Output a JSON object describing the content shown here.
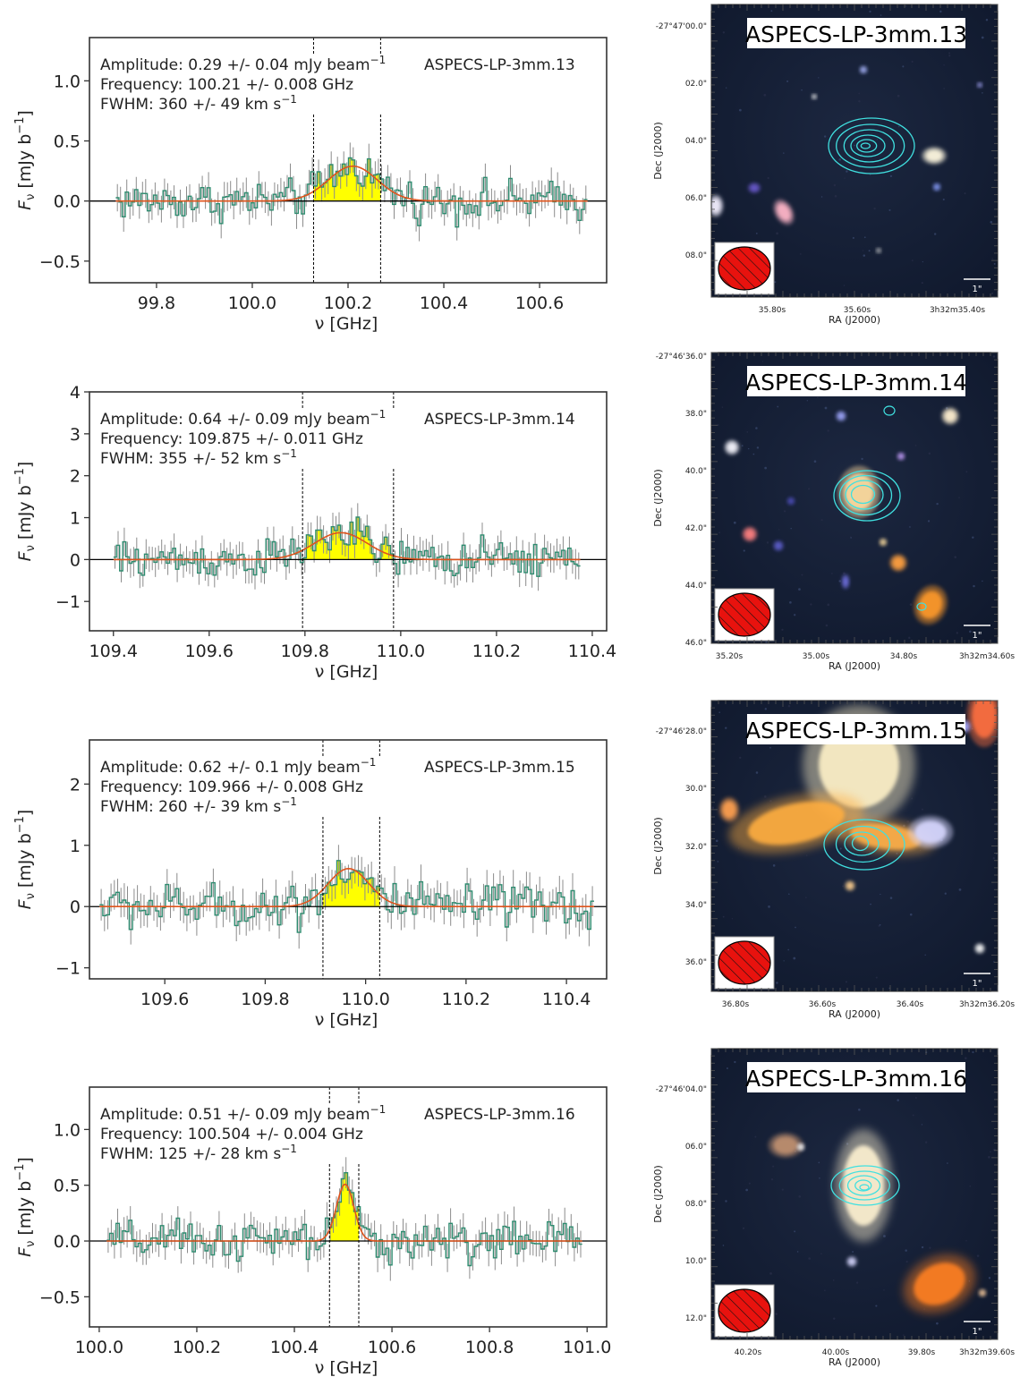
{
  "chart_data": [
    {
      "type": "line",
      "source": "ASPECS-LP-3mm.13",
      "ylabel_main": "F",
      "ylabel_sub": "ν",
      "ylabel_rest": " [mJy b",
      "ylabel_sup": "−1",
      "ylabel_end": "]",
      "xlabel": "ν [GHz]",
      "xlim": [
        99.66,
        100.74
      ],
      "ylim": [
        -0.68,
        1.36
      ],
      "xticks": [
        99.8,
        100.0,
        100.2,
        100.4,
        100.6
      ],
      "xtick_labels": [
        "99.8",
        "100.0",
        "100.2",
        "100.4",
        "100.6"
      ],
      "yticks": [
        -0.5,
        0.0,
        0.5,
        1.0
      ],
      "ytick_labels": [
        "−0.5",
        "0.0",
        "0.5",
        "1.0"
      ],
      "spectrum_x_range": [
        99.715,
        100.7
      ],
      "spectrum_noise": 0.1,
      "line_window": [
        100.128,
        100.268
      ],
      "gauss": {
        "amplitude": 0.29,
        "center": 100.21,
        "sigma_ghz": 0.0511
      },
      "annotation": {
        "amp_prefix": "Amplitude: 0.29 +/- 0.04 mJy beam",
        "amp_sup": "−1",
        "freq": "Frequency: 100.21 +/- 0.008 GHz",
        "fwhm_prefix": "FWHM: 360 +/- 49 km s",
        "fwhm_sup": "−1"
      },
      "name_label": "ASPECS-LP-3mm.13"
    },
    {
      "type": "line",
      "source": "ASPECS-LP-3mm.14",
      "ylabel_main": "F",
      "ylabel_sub": "ν",
      "ylabel_rest": " [mJy b",
      "ylabel_sup": "−1",
      "ylabel_end": "]",
      "xlabel": "ν [GHz]",
      "xlim": [
        109.35,
        110.43
      ],
      "ylim": [
        -1.7,
        4.0
      ],
      "xticks": [
        109.4,
        109.6,
        109.8,
        110.0,
        110.2,
        110.4
      ],
      "xtick_labels": [
        "109.4",
        "109.6",
        "109.8",
        "110.0",
        "110.2",
        "110.4"
      ],
      "yticks": [
        -1,
        0,
        1,
        2,
        3,
        4
      ],
      "ytick_labels": [
        "−1",
        "0",
        "1",
        "2",
        "3",
        "4"
      ],
      "spectrum_x_range": [
        109.4,
        110.375
      ],
      "spectrum_noise": 0.28,
      "line_window": [
        109.795,
        109.985
      ],
      "gauss": {
        "amplitude": 0.64,
        "center": 109.875,
        "sigma_ghz": 0.0551
      },
      "annotation": {
        "amp_prefix": "Amplitude: 0.64 +/- 0.09 mJy beam",
        "amp_sup": "−1",
        "freq": "Frequency: 109.875 +/- 0.011 GHz",
        "fwhm_prefix": "FWHM: 355 +/- 52 km s",
        "fwhm_sup": "−1"
      },
      "name_label": "ASPECS-LP-3mm.14"
    },
    {
      "type": "line",
      "source": "ASPECS-LP-3mm.15",
      "ylabel_main": "F",
      "ylabel_sub": "ν",
      "ylabel_rest": " [mJy b",
      "ylabel_sup": "−1",
      "ylabel_end": "]",
      "xlabel": "ν [GHz]",
      "xlim": [
        109.45,
        110.48
      ],
      "ylim": [
        -1.18,
        2.72
      ],
      "xticks": [
        109.6,
        109.8,
        110.0,
        110.2,
        110.4
      ],
      "xtick_labels": [
        "109.6",
        "109.8",
        "110.0",
        "110.2",
        "110.4"
      ],
      "yticks": [
        -1,
        0,
        1,
        2
      ],
      "ytick_labels": [
        "−1",
        "0",
        "1",
        "2"
      ],
      "spectrum_x_range": [
        109.47,
        110.455
      ],
      "spectrum_noise": 0.22,
      "line_window": [
        109.915,
        110.028
      ],
      "gauss": {
        "amplitude": 0.62,
        "center": 109.966,
        "sigma_ghz": 0.0405
      },
      "annotation": {
        "amp_prefix": "Amplitude: 0.62 +/- 0.1 mJy beam",
        "amp_sup": "−1",
        "freq": "Frequency: 109.966 +/- 0.008 GHz",
        "fwhm_prefix": "FWHM: 260 +/- 39 km s",
        "fwhm_sup": "−1"
      },
      "name_label": "ASPECS-LP-3mm.15"
    },
    {
      "type": "line",
      "source": "ASPECS-LP-3mm.16",
      "ylabel_main": "F",
      "ylabel_sub": "ν",
      "ylabel_rest": " [mJy b",
      "ylabel_sup": "−1",
      "ylabel_end": "]",
      "xlabel": "ν [GHz]",
      "xlim": [
        99.98,
        101.04
      ],
      "ylim": [
        -0.77,
        1.38
      ],
      "xticks": [
        100.0,
        100.2,
        100.4,
        100.6,
        100.8,
        101.0
      ],
      "xtick_labels": [
        "100.0",
        "100.2",
        "100.4",
        "100.6",
        "100.8",
        "101.0"
      ],
      "yticks": [
        -0.5,
        0.0,
        0.5,
        1.0
      ],
      "ytick_labels": [
        "−0.5",
        "0.0",
        "0.5",
        "1.0"
      ],
      "spectrum_x_range": [
        100.015,
        100.99
      ],
      "spectrum_noise": 0.11,
      "line_window": [
        100.472,
        100.532
      ],
      "gauss": {
        "amplitude": 0.51,
        "center": 100.504,
        "sigma_ghz": 0.0178
      },
      "annotation": {
        "amp_prefix": "Amplitude: 0.51 +/- 0.09 mJy beam",
        "amp_sup": "−1",
        "freq": "Frequency: 100.504 +/- 0.004 GHz",
        "fwhm_prefix": "FWHM: 125 +/- 28 km s",
        "fwhm_sup": "−1"
      },
      "name_label": "ASPECS-LP-3mm.16"
    }
  ],
  "stamps": [
    {
      "title": "ASPECS-LP-3mm.13",
      "dec_ticks": [
        "-27°47'00.0\"",
        "02.0\"",
        "04.0\"",
        "06.0\"",
        "08.0\""
      ],
      "ra_ticks": [
        "35.80s",
        "35.60s",
        "3h32m35.40s"
      ],
      "dec_label": "Dec (J2000)",
      "ra_label": "RA (J2000)",
      "scale_label": "1\"",
      "contour_color": "#40e0e0",
      "beam_color": "#e8120e"
    },
    {
      "title": "ASPECS-LP-3mm.14",
      "dec_ticks": [
        "-27°46'36.0\"",
        "38.0\"",
        "40.0\"",
        "42.0\"",
        "44.0\"",
        "46.0\""
      ],
      "ra_ticks": [
        "35.20s",
        "35.00s",
        "34.80s",
        "3h32m34.60s"
      ],
      "dec_label": "Dec (J2000)",
      "ra_label": "RA (J2000)",
      "scale_label": "1\"",
      "contour_color": "#40e0e0",
      "beam_color": "#e8120e"
    },
    {
      "title": "ASPECS-LP-3mm.15",
      "dec_ticks": [
        "-27°46'28.0\"",
        "30.0\"",
        "32.0\"",
        "34.0\"",
        "36.0\""
      ],
      "ra_ticks": [
        "36.80s",
        "36.60s",
        "36.40s",
        "3h32m36.20s"
      ],
      "dec_label": "Dec (J2000)",
      "ra_label": "RA (J2000)",
      "scale_label": "1\"",
      "contour_color": "#40e0e0",
      "beam_color": "#e8120e"
    },
    {
      "title": "ASPECS-LP-3mm.16",
      "dec_ticks": [
        "-27°46'04.0\"",
        "06.0\"",
        "08.0\"",
        "10.0\"",
        "12.0\""
      ],
      "ra_ticks": [
        "40.20s",
        "40.00s",
        "39.80s",
        "3h32m39.60s"
      ],
      "dec_label": "Dec (J2000)",
      "ra_label": "RA (J2000)",
      "scale_label": "1\"",
      "contour_color": "#40e0e0",
      "beam_color": "#e8120e"
    }
  ],
  "colors": {
    "spectrum_step": "#2e8b6f",
    "error_bar": "#8c8c8c",
    "line_fill": "#ffff00",
    "fit_curve": "#e0541c",
    "zero_line": "#000000"
  }
}
